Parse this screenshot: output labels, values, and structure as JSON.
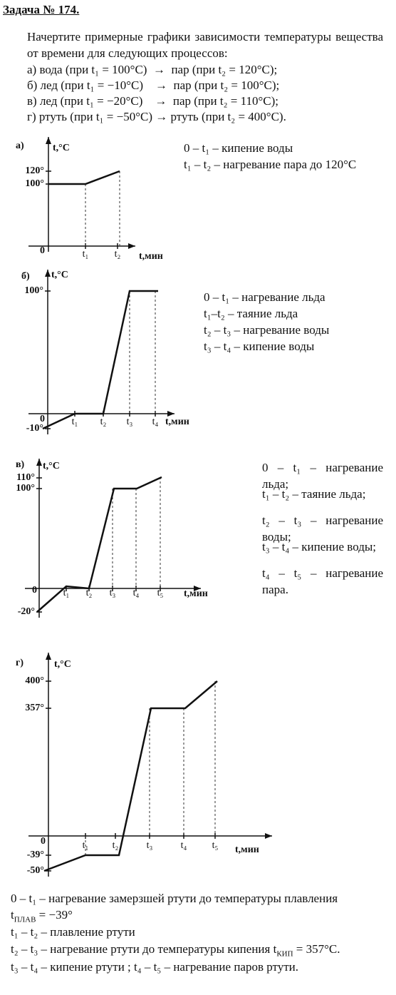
{
  "header": {
    "title": "Задача № 174."
  },
  "task": {
    "text": "Начертите примерные графики зависимости температуры вещества от времени для следующих процессов:",
    "items": [
      "а) вода (при t₁ = 100°C)  →  пар (при t₂ = 120°C);",
      "б) лед (при t₁ = −10°C)    →  пар (при t₂ = 100°C);",
      "в) лед (при t₁ = −20°C)    →  пар (при t₂ = 110°C);",
      "г) ртуть (при t₁ = −50°C) → ртуть (при t₂ = 400°C)."
    ]
  },
  "graphs": [
    {
      "label": "а)",
      "y_axis": "t,°C",
      "x_axis": "t,мин",
      "zero": "0",
      "y_ticks": [
        "120°",
        "100°"
      ],
      "x_ticks": [
        "t₁",
        "t₂"
      ],
      "notes": [
        "0 – t₁ – кипение воды",
        "t₁ – t₂ – нагревание пара до 120°C"
      ]
    },
    {
      "label": "б)",
      "y_axis": "t,°C",
      "x_axis": "t,мин",
      "zero": "0",
      "y_ticks": [
        "100°",
        "-10°"
      ],
      "x_ticks": [
        "t₁",
        "t₂",
        "t₃",
        "t₄"
      ],
      "notes": [
        "0 – t₁ – нагревание льда",
        "t₁–t₂ – таяние льда",
        "t₂ – t₃ – нагревание воды",
        "t₃ – t₄ – кипение воды"
      ]
    },
    {
      "label": "в)",
      "y_axis": "t,°C",
      "x_axis": "t,мин",
      "zero": "0",
      "y_ticks": [
        "110°",
        "100°",
        "-20°"
      ],
      "x_ticks": [
        "t₁",
        "t₂",
        "t₃",
        "t₄",
        "t₅"
      ],
      "notes": [
        "0 – t₁ – нагревание льда;",
        "t₁ – t₂ – таяние льда;",
        "t₂ – t₃ – нагревание воды;",
        "t₃ – t₄ – кипение воды;",
        "t₄ – t₅ – нагревание пара."
      ]
    },
    {
      "label": "г)",
      "y_axis": "t,°C",
      "x_axis": "t,мин",
      "zero": "0",
      "y_ticks": [
        "400°",
        "357°",
        "-39°",
        "-50°"
      ],
      "x_ticks": [
        "t₁",
        "t₂",
        "t₃",
        "t₄",
        "t₅"
      ],
      "notes": []
    }
  ],
  "footer": {
    "line0": "0 – t₁ – нагревание замерзшей ртути до температуры плавления",
    "line1": {
      "pre": "t",
      "sub": "ПЛАВ",
      "post": " = −39°"
    },
    "line2": "t₁ – t₂ – плавление ртути",
    "line3": {
      "pre": "t₂ – t₃ – нагревание ртути до температуры кипения t",
      "sub": "КИП",
      "post": " = 357°C."
    },
    "line4": "t₃ – t₄ –  кипение ртути ; t₄ – t₅ – нагревание паров ртути."
  }
}
